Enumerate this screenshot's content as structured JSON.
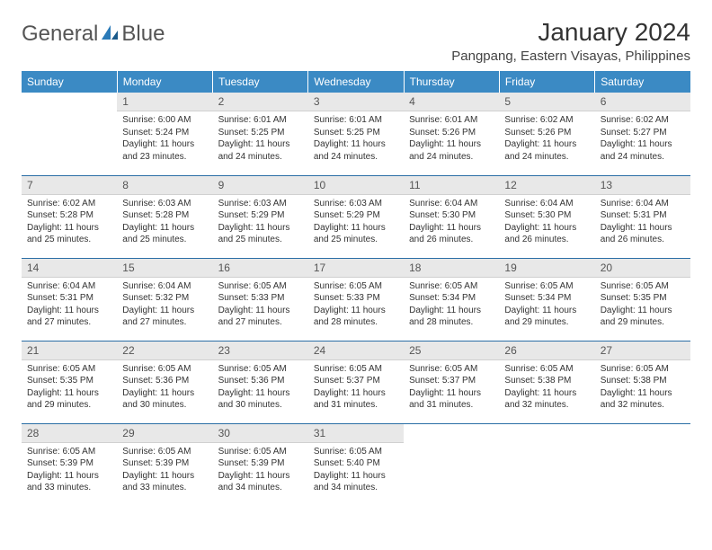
{
  "logo": {
    "word1": "General",
    "word2": "Blue"
  },
  "title": "January 2024",
  "location": "Pangpang, Eastern Visayas, Philippines",
  "colors": {
    "header_bg": "#3b8ac4",
    "header_text": "#ffffff",
    "daynum_bg": "#e8e8e8",
    "row_border": "#2a6ea5",
    "logo_blue": "#2a7ab8"
  },
  "weekdays": [
    "Sunday",
    "Monday",
    "Tuesday",
    "Wednesday",
    "Thursday",
    "Friday",
    "Saturday"
  ],
  "weeks": [
    [
      null,
      {
        "n": "1",
        "sr": "Sunrise: 6:00 AM",
        "ss": "Sunset: 5:24 PM",
        "d1": "Daylight: 11 hours",
        "d2": "and 23 minutes."
      },
      {
        "n": "2",
        "sr": "Sunrise: 6:01 AM",
        "ss": "Sunset: 5:25 PM",
        "d1": "Daylight: 11 hours",
        "d2": "and 24 minutes."
      },
      {
        "n": "3",
        "sr": "Sunrise: 6:01 AM",
        "ss": "Sunset: 5:25 PM",
        "d1": "Daylight: 11 hours",
        "d2": "and 24 minutes."
      },
      {
        "n": "4",
        "sr": "Sunrise: 6:01 AM",
        "ss": "Sunset: 5:26 PM",
        "d1": "Daylight: 11 hours",
        "d2": "and 24 minutes."
      },
      {
        "n": "5",
        "sr": "Sunrise: 6:02 AM",
        "ss": "Sunset: 5:26 PM",
        "d1": "Daylight: 11 hours",
        "d2": "and 24 minutes."
      },
      {
        "n": "6",
        "sr": "Sunrise: 6:02 AM",
        "ss": "Sunset: 5:27 PM",
        "d1": "Daylight: 11 hours",
        "d2": "and 24 minutes."
      }
    ],
    [
      {
        "n": "7",
        "sr": "Sunrise: 6:02 AM",
        "ss": "Sunset: 5:28 PM",
        "d1": "Daylight: 11 hours",
        "d2": "and 25 minutes."
      },
      {
        "n": "8",
        "sr": "Sunrise: 6:03 AM",
        "ss": "Sunset: 5:28 PM",
        "d1": "Daylight: 11 hours",
        "d2": "and 25 minutes."
      },
      {
        "n": "9",
        "sr": "Sunrise: 6:03 AM",
        "ss": "Sunset: 5:29 PM",
        "d1": "Daylight: 11 hours",
        "d2": "and 25 minutes."
      },
      {
        "n": "10",
        "sr": "Sunrise: 6:03 AM",
        "ss": "Sunset: 5:29 PM",
        "d1": "Daylight: 11 hours",
        "d2": "and 25 minutes."
      },
      {
        "n": "11",
        "sr": "Sunrise: 6:04 AM",
        "ss": "Sunset: 5:30 PM",
        "d1": "Daylight: 11 hours",
        "d2": "and 26 minutes."
      },
      {
        "n": "12",
        "sr": "Sunrise: 6:04 AM",
        "ss": "Sunset: 5:30 PM",
        "d1": "Daylight: 11 hours",
        "d2": "and 26 minutes."
      },
      {
        "n": "13",
        "sr": "Sunrise: 6:04 AM",
        "ss": "Sunset: 5:31 PM",
        "d1": "Daylight: 11 hours",
        "d2": "and 26 minutes."
      }
    ],
    [
      {
        "n": "14",
        "sr": "Sunrise: 6:04 AM",
        "ss": "Sunset: 5:31 PM",
        "d1": "Daylight: 11 hours",
        "d2": "and 27 minutes."
      },
      {
        "n": "15",
        "sr": "Sunrise: 6:04 AM",
        "ss": "Sunset: 5:32 PM",
        "d1": "Daylight: 11 hours",
        "d2": "and 27 minutes."
      },
      {
        "n": "16",
        "sr": "Sunrise: 6:05 AM",
        "ss": "Sunset: 5:33 PM",
        "d1": "Daylight: 11 hours",
        "d2": "and 27 minutes."
      },
      {
        "n": "17",
        "sr": "Sunrise: 6:05 AM",
        "ss": "Sunset: 5:33 PM",
        "d1": "Daylight: 11 hours",
        "d2": "and 28 minutes."
      },
      {
        "n": "18",
        "sr": "Sunrise: 6:05 AM",
        "ss": "Sunset: 5:34 PM",
        "d1": "Daylight: 11 hours",
        "d2": "and 28 minutes."
      },
      {
        "n": "19",
        "sr": "Sunrise: 6:05 AM",
        "ss": "Sunset: 5:34 PM",
        "d1": "Daylight: 11 hours",
        "d2": "and 29 minutes."
      },
      {
        "n": "20",
        "sr": "Sunrise: 6:05 AM",
        "ss": "Sunset: 5:35 PM",
        "d1": "Daylight: 11 hours",
        "d2": "and 29 minutes."
      }
    ],
    [
      {
        "n": "21",
        "sr": "Sunrise: 6:05 AM",
        "ss": "Sunset: 5:35 PM",
        "d1": "Daylight: 11 hours",
        "d2": "and 29 minutes."
      },
      {
        "n": "22",
        "sr": "Sunrise: 6:05 AM",
        "ss": "Sunset: 5:36 PM",
        "d1": "Daylight: 11 hours",
        "d2": "and 30 minutes."
      },
      {
        "n": "23",
        "sr": "Sunrise: 6:05 AM",
        "ss": "Sunset: 5:36 PM",
        "d1": "Daylight: 11 hours",
        "d2": "and 30 minutes."
      },
      {
        "n": "24",
        "sr": "Sunrise: 6:05 AM",
        "ss": "Sunset: 5:37 PM",
        "d1": "Daylight: 11 hours",
        "d2": "and 31 minutes."
      },
      {
        "n": "25",
        "sr": "Sunrise: 6:05 AM",
        "ss": "Sunset: 5:37 PM",
        "d1": "Daylight: 11 hours",
        "d2": "and 31 minutes."
      },
      {
        "n": "26",
        "sr": "Sunrise: 6:05 AM",
        "ss": "Sunset: 5:38 PM",
        "d1": "Daylight: 11 hours",
        "d2": "and 32 minutes."
      },
      {
        "n": "27",
        "sr": "Sunrise: 6:05 AM",
        "ss": "Sunset: 5:38 PM",
        "d1": "Daylight: 11 hours",
        "d2": "and 32 minutes."
      }
    ],
    [
      {
        "n": "28",
        "sr": "Sunrise: 6:05 AM",
        "ss": "Sunset: 5:39 PM",
        "d1": "Daylight: 11 hours",
        "d2": "and 33 minutes."
      },
      {
        "n": "29",
        "sr": "Sunrise: 6:05 AM",
        "ss": "Sunset: 5:39 PM",
        "d1": "Daylight: 11 hours",
        "d2": "and 33 minutes."
      },
      {
        "n": "30",
        "sr": "Sunrise: 6:05 AM",
        "ss": "Sunset: 5:39 PM",
        "d1": "Daylight: 11 hours",
        "d2": "and 34 minutes."
      },
      {
        "n": "31",
        "sr": "Sunrise: 6:05 AM",
        "ss": "Sunset: 5:40 PM",
        "d1": "Daylight: 11 hours",
        "d2": "and 34 minutes."
      },
      null,
      null,
      null
    ]
  ]
}
